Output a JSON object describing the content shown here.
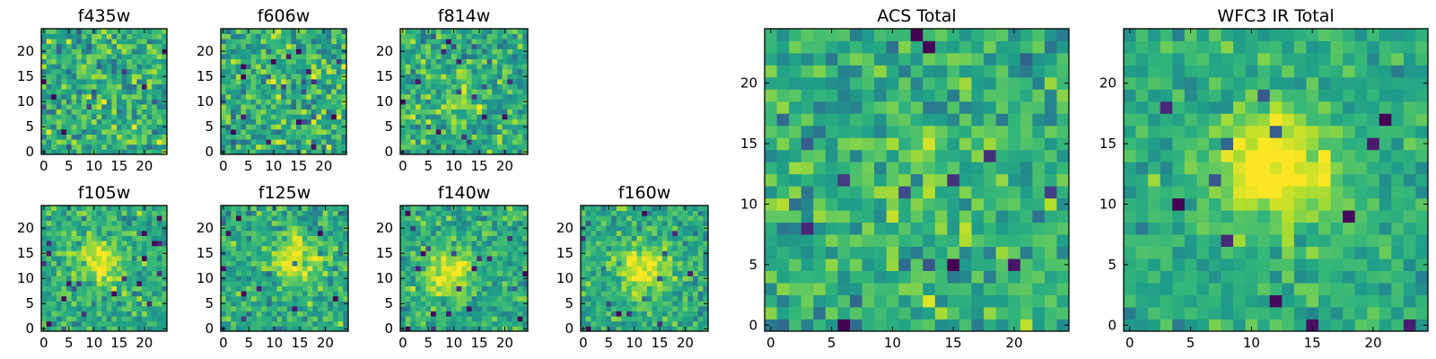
{
  "chart_data": [
    {
      "id": "f435w",
      "type": "heatmap",
      "title": "f435w",
      "grid_size": 25,
      "xlim": [
        0,
        25
      ],
      "ylim": [
        0,
        25
      ],
      "xticks": [
        0,
        5,
        10,
        15,
        20
      ],
      "yticks": [
        0,
        5,
        10,
        15,
        20
      ],
      "seed": 11,
      "peak": [
        12,
        12
      ],
      "peak_strength": 0.05,
      "noise": 0.38,
      "colormap": "viridis"
    },
    {
      "id": "f606w",
      "type": "heatmap",
      "title": "f606w",
      "grid_size": 25,
      "xlim": [
        0,
        25
      ],
      "ylim": [
        0,
        25
      ],
      "xticks": [
        0,
        5,
        10,
        15,
        20
      ],
      "yticks": [
        0,
        5,
        10,
        15,
        20
      ],
      "seed": 23,
      "peak": [
        12,
        12
      ],
      "peak_strength": 0.05,
      "noise": 0.38,
      "colormap": "viridis"
    },
    {
      "id": "f814w",
      "type": "heatmap",
      "title": "f814w",
      "grid_size": 25,
      "xlim": [
        0,
        25
      ],
      "ylim": [
        0,
        25
      ],
      "xticks": [
        0,
        5,
        10,
        15,
        20
      ],
      "yticks": [
        0,
        5,
        10,
        15,
        20
      ],
      "seed": 37,
      "peak": [
        11,
        11
      ],
      "peak_strength": 0.15,
      "noise": 0.34,
      "colormap": "viridis"
    },
    {
      "id": "f105w",
      "type": "heatmap",
      "title": "f105w",
      "grid_size": 25,
      "xlim": [
        0,
        25
      ],
      "ylim": [
        0,
        25
      ],
      "xticks": [
        0,
        5,
        10,
        15,
        20
      ],
      "yticks": [
        0,
        5,
        10,
        15,
        20
      ],
      "seed": 41,
      "peak": [
        11,
        13
      ],
      "peak_strength": 0.35,
      "noise": 0.28,
      "colormap": "viridis"
    },
    {
      "id": "f125w",
      "type": "heatmap",
      "title": "f125w",
      "grid_size": 25,
      "xlim": [
        0,
        25
      ],
      "ylim": [
        0,
        25
      ],
      "xticks": [
        0,
        5,
        10,
        15,
        20
      ],
      "yticks": [
        0,
        5,
        10,
        15,
        20
      ],
      "seed": 53,
      "peak": [
        14,
        14
      ],
      "peak_strength": 0.35,
      "noise": 0.3,
      "colormap": "viridis"
    },
    {
      "id": "f140w",
      "type": "heatmap",
      "title": "f140w",
      "grid_size": 25,
      "xlim": [
        0,
        25
      ],
      "ylim": [
        0,
        25
      ],
      "xticks": [
        0,
        5,
        10,
        15,
        20
      ],
      "yticks": [
        0,
        5,
        10,
        15,
        20
      ],
      "seed": 67,
      "peak": [
        9,
        11
      ],
      "peak_strength": 0.4,
      "noise": 0.28,
      "colormap": "viridis"
    },
    {
      "id": "f160w",
      "type": "heatmap",
      "title": "f160w",
      "grid_size": 25,
      "xlim": [
        0,
        25
      ],
      "ylim": [
        0,
        25
      ],
      "xticks": [
        0,
        5,
        10,
        15,
        20
      ],
      "yticks": [
        0,
        5,
        10,
        15,
        20
      ],
      "seed": 79,
      "peak": [
        12,
        12
      ],
      "peak_strength": 0.4,
      "noise": 0.28,
      "colormap": "viridis"
    },
    {
      "id": "acs-total",
      "type": "heatmap",
      "title": "ACS Total",
      "grid_size": 25,
      "xlim": [
        0,
        25
      ],
      "ylim": [
        0,
        25
      ],
      "xticks": [
        0,
        5,
        10,
        15,
        20
      ],
      "yticks": [
        0,
        5,
        10,
        15,
        20
      ],
      "seed": 97,
      "peak": [
        12,
        12
      ],
      "peak_strength": 0.1,
      "noise": 0.32,
      "colormap": "viridis"
    },
    {
      "id": "wfc3-ir-total",
      "type": "heatmap",
      "title": "WFC3 IR Total",
      "grid_size": 25,
      "xlim": [
        0,
        25
      ],
      "ylim": [
        0,
        25
      ],
      "xticks": [
        0,
        5,
        10,
        15,
        20
      ],
      "yticks": [
        0,
        5,
        10,
        15,
        20
      ],
      "seed": 113,
      "peak": [
        12,
        13
      ],
      "peak_strength": 0.5,
      "noise": 0.22,
      "colormap": "viridis"
    }
  ]
}
